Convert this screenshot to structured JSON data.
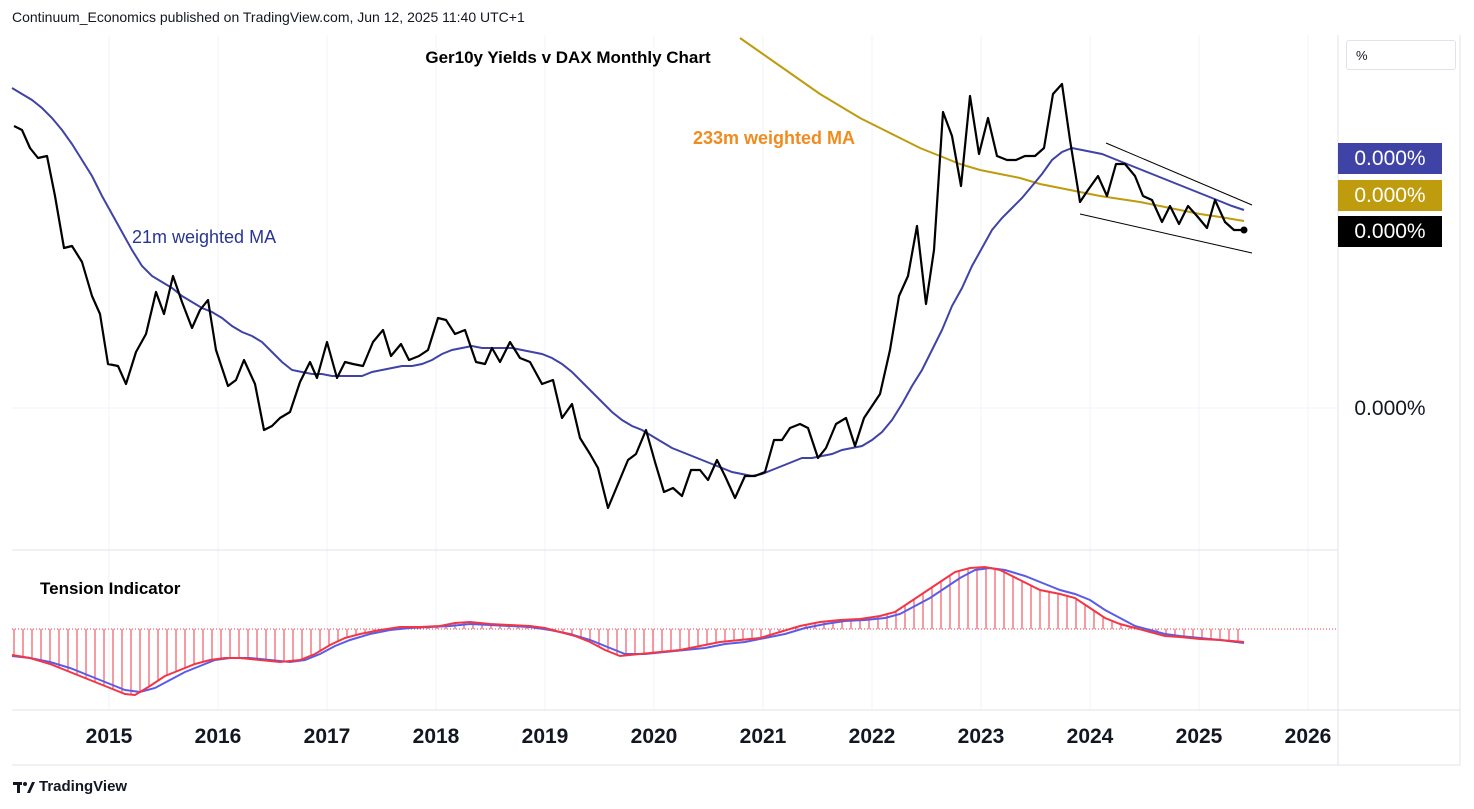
{
  "header": {
    "published": "Continuum_Economics published on TradingView.com, Jun 12, 2025 11:40 UTC+1"
  },
  "footer": {
    "brand": "TradingView",
    "logo_icon": "tradingview-logo-icon"
  },
  "price_scale": {
    "unit": "%",
    "tags": [
      {
        "label": "0.000%",
        "color": "#3f43a6"
      },
      {
        "label": "0.000%",
        "color": "#bf9b0e"
      },
      {
        "label": "0.000%",
        "color": "#000000"
      }
    ],
    "plain_label": "0.000%"
  },
  "colors": {
    "yield_line": "#000000",
    "ma21": "#3f43a6",
    "ma233": "#bf9b0e",
    "ma233_label": "#f08c1e",
    "ma21_label": "#283593",
    "tension_red": "#f23645",
    "tension_blue": "#5b5ce6",
    "grid": "#f0f3fa"
  },
  "chart_data": [
    {
      "type": "line",
      "title": "Ger10y Yields v DAX Monthly Chart",
      "xlabel": "",
      "ylabel": "",
      "x_tick_labels": [
        "2015",
        "2016",
        "2017",
        "2018",
        "2019",
        "2020",
        "2021",
        "2022",
        "2023",
        "2024",
        "2025",
        "2026"
      ],
      "annotations": [
        "21m weighted MA",
        "233m weighted MA"
      ],
      "series": [
        {
          "name": "21m weighted MA"
        },
        {
          "name": "233m weighted MA"
        }
      ]
    },
    {
      "type": "line",
      "title": "Tension Indicator",
      "xlabel": "",
      "ylabel": ""
    }
  ]
}
